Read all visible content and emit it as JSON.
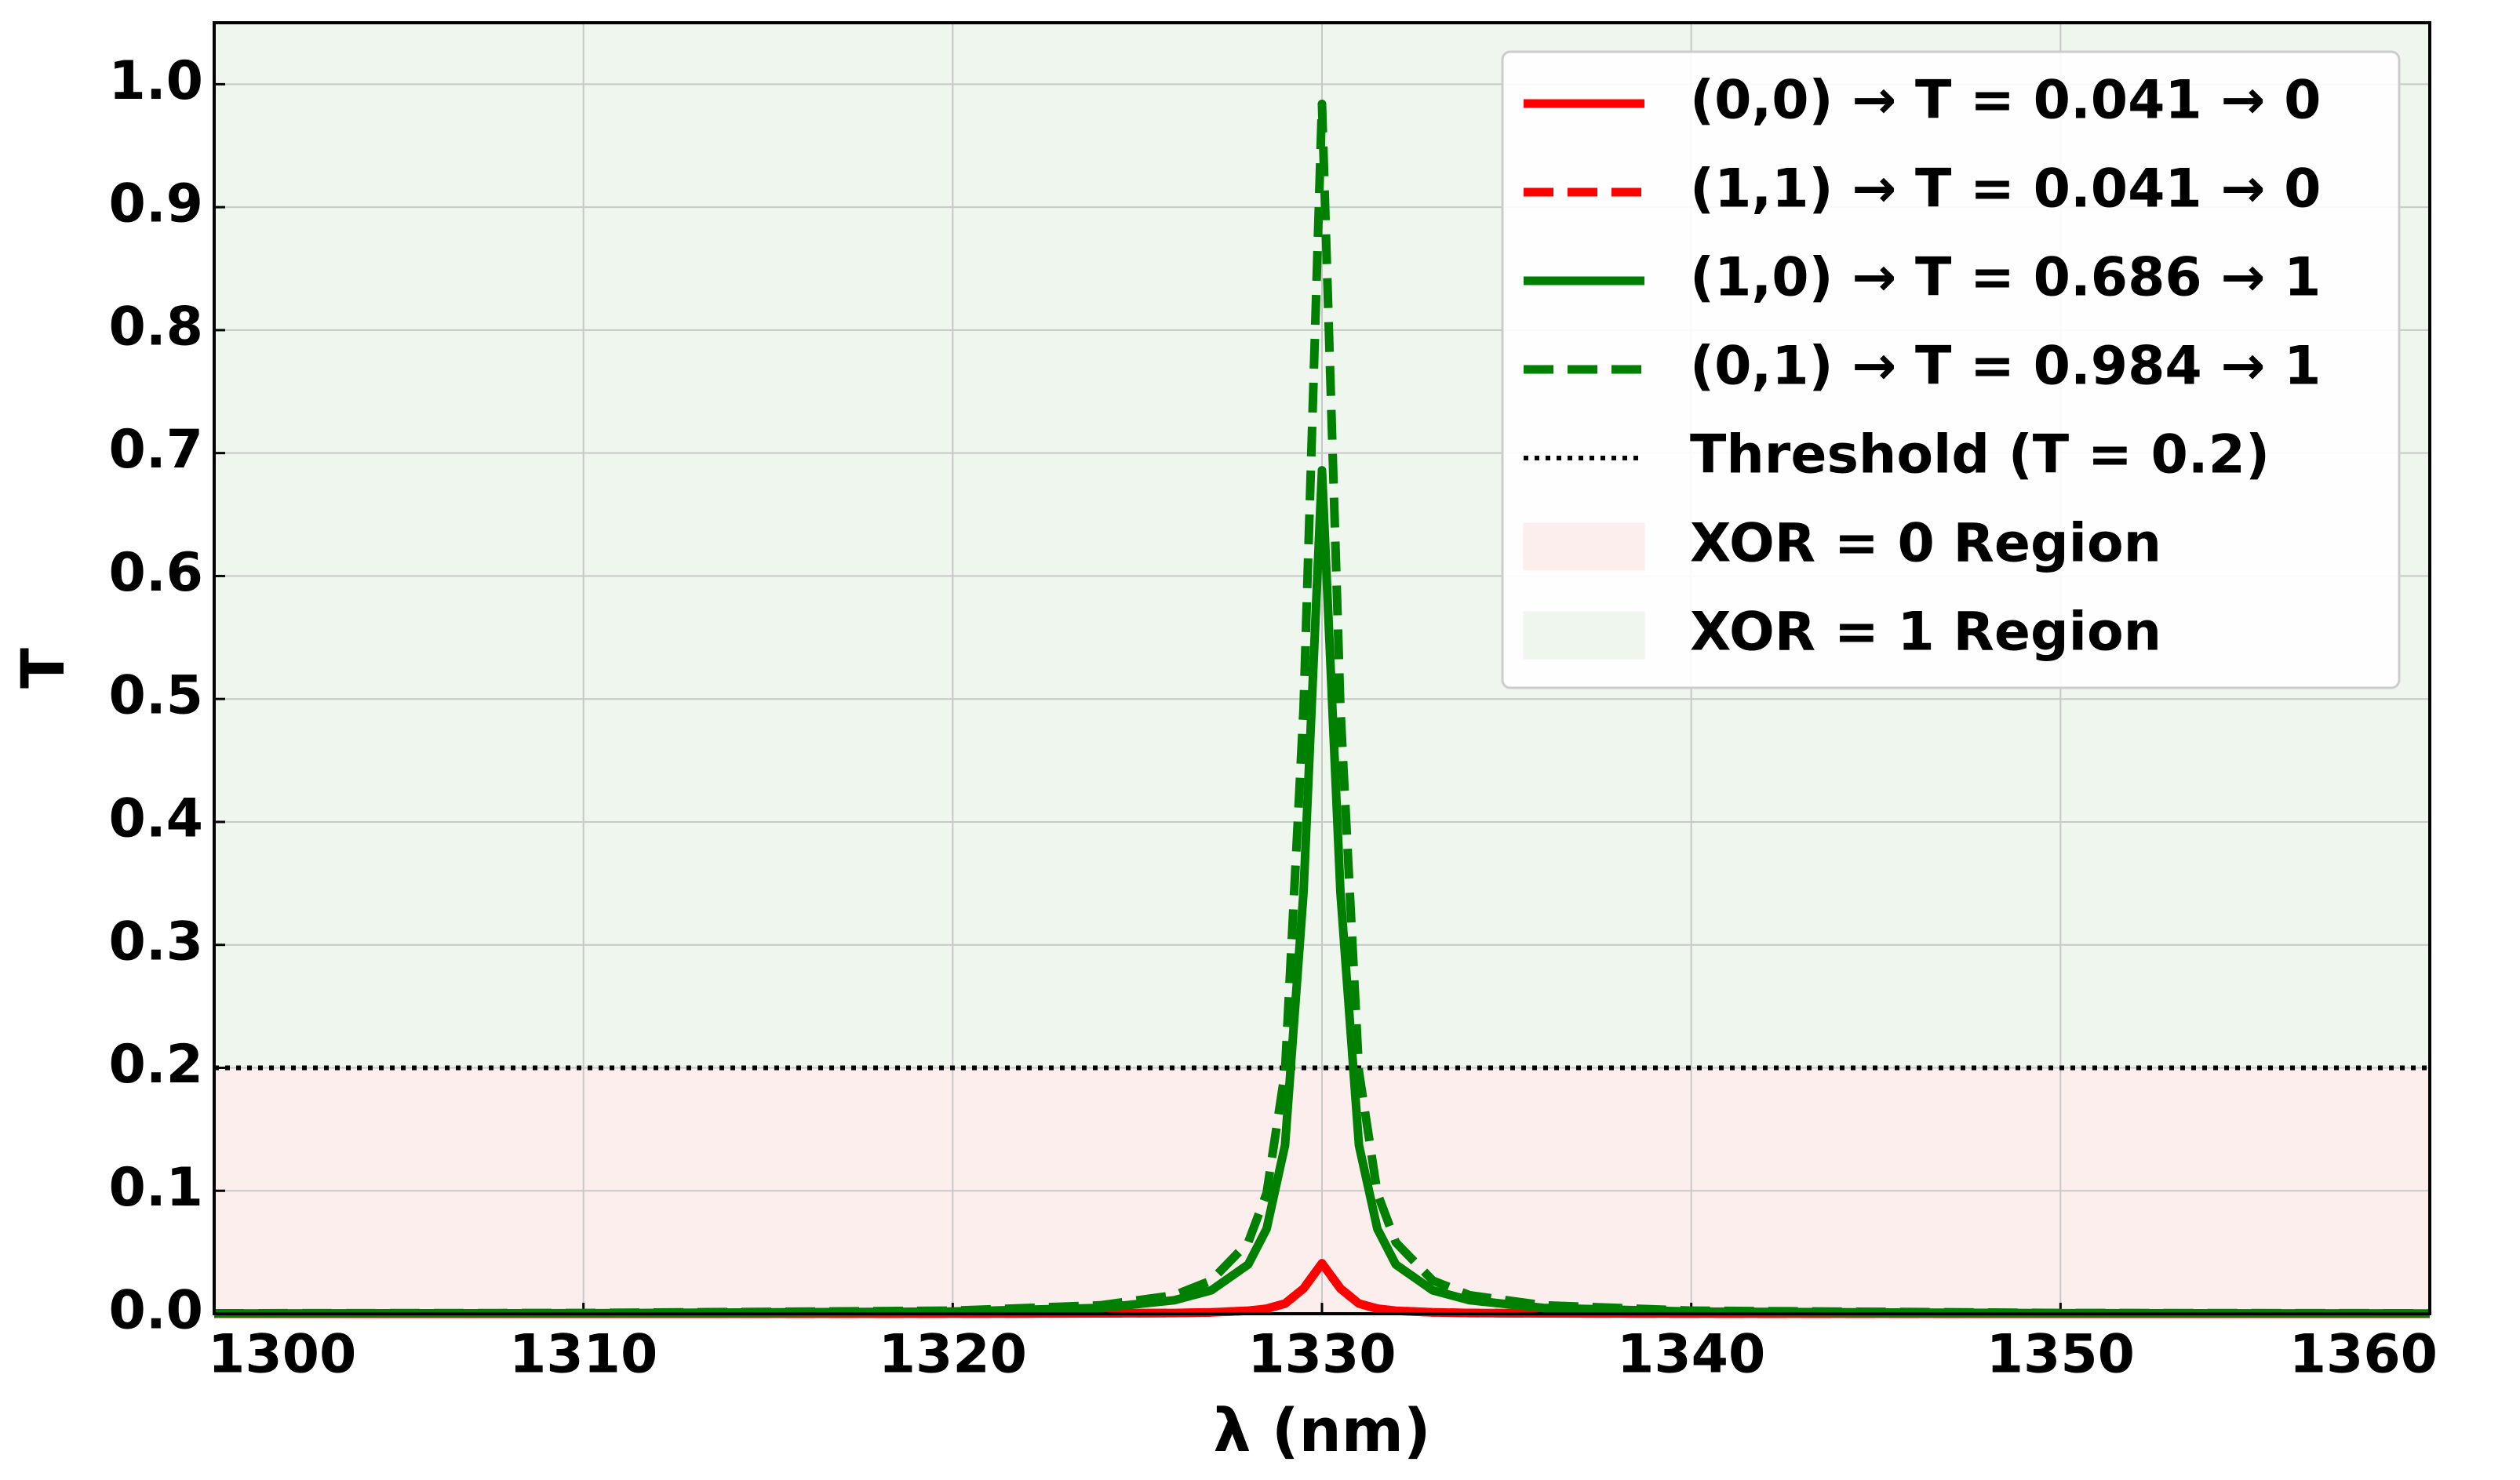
{
  "chart_data": {
    "type": "line",
    "xlabel": "λ (nm)",
    "ylabel": "T",
    "x": [
      1300,
      1310,
      1320,
      1324,
      1326,
      1327,
      1328,
      1328.5,
      1329,
      1329.5,
      1330,
      1330.5,
      1331,
      1331.5,
      1332,
      1333,
      1334,
      1336,
      1340,
      1350,
      1360
    ],
    "series": [
      {
        "name": "(0,0) → T = 0.041 → 0",
        "color": "#ff0000",
        "dash": false,
        "values": [
          0,
          0,
          0.0001,
          0.0003,
          0.0006,
          0.0011,
          0.0024,
          0.0041,
          0.0082,
          0.0205,
          0.041,
          0.0205,
          0.0082,
          0.0041,
          0.0024,
          0.0011,
          0.0006,
          0.0003,
          0.0001,
          0,
          0
        ]
      },
      {
        "name": "(1,1) → T = 0.041 → 0",
        "color": "#ff0000",
        "dash": true,
        "values": [
          0,
          0,
          0.0001,
          0.0003,
          0.0006,
          0.0011,
          0.0024,
          0.0041,
          0.0082,
          0.0205,
          0.041,
          0.0205,
          0.0082,
          0.0041,
          0.0024,
          0.0011,
          0.0006,
          0.0003,
          0.0001,
          0,
          0
        ]
      },
      {
        "name": "(1,0) → T = 0.686 → 1",
        "color": "#008000",
        "dash": false,
        "values": [
          0.0002,
          0.0004,
          0.0017,
          0.0047,
          0.011,
          0.019,
          0.04,
          0.069,
          0.137,
          0.343,
          0.686,
          0.343,
          0.137,
          0.069,
          0.04,
          0.019,
          0.011,
          0.0047,
          0.0017,
          0.0004,
          0.0002
        ]
      },
      {
        "name": "(0,1) → T = 0.984 → 1",
        "color": "#008000",
        "dash": true,
        "values": [
          0.0003,
          0.0006,
          0.0025,
          0.0068,
          0.015,
          0.027,
          0.058,
          0.098,
          0.197,
          0.492,
          0.984,
          0.492,
          0.197,
          0.098,
          0.058,
          0.027,
          0.015,
          0.0068,
          0.0025,
          0.0006,
          0.0003
        ]
      }
    ],
    "threshold": {
      "name": "Threshold (T = 0.2)",
      "value": 0.2,
      "color": "#000000"
    },
    "regions": [
      {
        "name": "XOR = 0 Region",
        "color": "#fdeeee",
        "range": [
          0,
          0.2
        ]
      },
      {
        "name": "XOR = 1 Region",
        "color": "#eef6ee",
        "range": [
          0.2,
          1.05
        ]
      }
    ],
    "xlim": [
      1300,
      1360
    ],
    "xticks": [
      1300,
      1310,
      1320,
      1330,
      1340,
      1350,
      1360
    ],
    "ylim": [
      0,
      1.05
    ],
    "yticks": [
      {
        "value": 0,
        "label": "0.0"
      },
      0.1,
      0.2,
      0.3,
      0.4,
      0.5,
      0.6,
      0.7,
      0.8,
      0.9,
      {
        "value": 1,
        "label": "1.0"
      }
    ],
    "grid": true,
    "legend": "upper right"
  }
}
